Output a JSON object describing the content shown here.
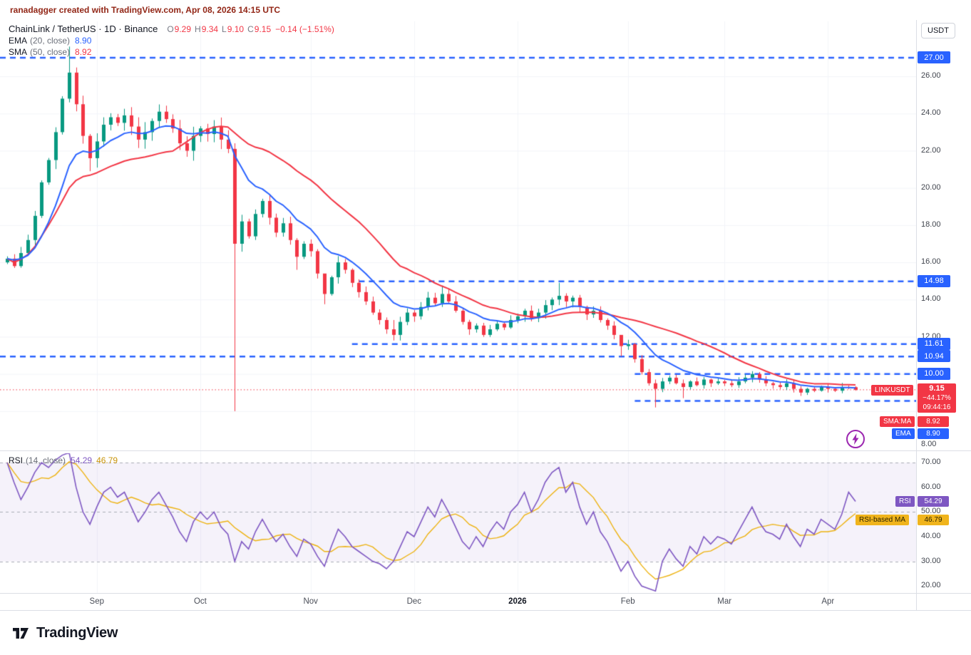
{
  "attribution": "ranadagger created with TradingView.com, Apr 08, 2026 14:15 UTC",
  "legend": {
    "title": "ChainLink / TetherUS · 1D · Binance",
    "ohlc": {
      "o_label": "O",
      "o": "9.29",
      "h_label": "H",
      "h": "9.34",
      "l_label": "L",
      "l": "9.10",
      "c_label": "C",
      "c": "9.15",
      "change": "−0.14 (−1.51%)"
    },
    "ema": {
      "name": "EMA",
      "params": "(20, close)",
      "value": "8.90"
    },
    "sma": {
      "name": "SMA",
      "params": "(50, close)",
      "value": "8.92"
    }
  },
  "rsi_legend": {
    "name": "RSI",
    "params": "(14, close)",
    "value": "54.29",
    "ma_value": "46.79"
  },
  "axis": {
    "currency": "USDT",
    "price_ticks": [
      26,
      24,
      22,
      20,
      18,
      16,
      14,
      12
    ],
    "bottom_tick": "8.00",
    "rsi_ticks": [
      70,
      60,
      50,
      40,
      30,
      20
    ],
    "level_badges": [
      {
        "label": "27.00",
        "value": 27.0
      },
      {
        "label": "14.98",
        "value": 14.98
      },
      {
        "label": "11.61",
        "value": 11.61
      },
      {
        "label": "10.94",
        "value": 10.94
      },
      {
        "label": "10.00",
        "value": 10.0
      }
    ],
    "time_labels": [
      {
        "label": "Sep",
        "i": 13
      },
      {
        "label": "Oct",
        "i": 28
      },
      {
        "label": "Nov",
        "i": 44
      },
      {
        "label": "Dec",
        "i": 59
      },
      {
        "label": "2026",
        "i": 74,
        "bold": true
      },
      {
        "label": "Feb",
        "i": 90
      },
      {
        "label": "Mar",
        "i": 104
      },
      {
        "label": "Apr",
        "i": 119
      }
    ]
  },
  "badges": {
    "price": {
      "value": "9.15",
      "change": "−44.17%",
      "countdown": "09:44:16"
    },
    "symbol_tag": "LINKUSDT",
    "sma_tag": {
      "label": "SMA:MA",
      "value": "8.92"
    },
    "ema_tag": {
      "label": "EMA",
      "value": "8.90"
    },
    "rsi_tag": {
      "label": "RSI",
      "value": "54.29"
    },
    "rsi_ma_tag": {
      "label": "RSI-based MA",
      "value": "46.79"
    }
  },
  "footer": {
    "brand": "TradingView"
  },
  "colors": {
    "up": "#089981",
    "down": "#f23645",
    "ema": "#2962ff",
    "sma": "#f23645",
    "level": "#2962ff",
    "last_price_line": "#f23645",
    "rsi": "#7e57c2",
    "rsi_ma": "#edb20f",
    "rsi_band": "rgba(126,87,194,0.08)"
  },
  "chart_data": [
    {
      "type": "candlestick",
      "title": "ChainLink / TetherUS, 1D, Binance",
      "ticker": "LINKUSDT",
      "interval": "1D",
      "exchange": "Binance",
      "last_ohlc": {
        "open": 9.29,
        "high": 9.34,
        "low": 9.1,
        "close": 9.15,
        "change": -0.14,
        "change_pct": -1.51
      },
      "ylim": [
        5.9,
        29.0
      ],
      "x_start": "Aug 2025",
      "x_end": "Apr 8 2026",
      "sampling_days": 2,
      "first_open": 16.0,
      "closes": [
        16.2,
        15.8,
        16.5,
        17.2,
        18.5,
        20.3,
        21.5,
        23.0,
        24.8,
        26.2,
        24.5,
        22.8,
        21.6,
        22.5,
        23.4,
        23.8,
        23.5,
        23.9,
        23.3,
        22.6,
        23.0,
        23.6,
        24.1,
        23.7,
        23.2,
        22.4,
        22.0,
        22.8,
        23.2,
        22.9,
        23.3,
        22.6,
        22.1,
        17.0,
        18.2,
        17.4,
        18.6,
        19.3,
        18.4,
        17.6,
        18.1,
        17.2,
        16.3,
        17.0,
        16.6,
        15.4,
        14.3,
        15.2,
        16.0,
        15.6,
        14.9,
        14.4,
        13.9,
        13.3,
        12.9,
        12.4,
        12.1,
        12.8,
        13.3,
        13.1,
        13.6,
        14.1,
        13.8,
        14.3,
        13.9,
        13.4,
        12.8,
        12.4,
        12.6,
        12.1,
        12.4,
        12.7,
        12.5,
        12.9,
        13.1,
        13.4,
        13.0,
        13.3,
        13.7,
        14.0,
        14.2,
        13.9,
        14.1,
        13.6,
        13.2,
        13.4,
        12.9,
        12.6,
        12.1,
        11.5,
        11.6,
        10.8,
        10.1,
        9.5,
        9.2,
        9.6,
        9.8,
        9.5,
        9.3,
        9.6,
        9.4,
        9.7,
        9.5,
        9.6,
        9.5,
        9.4,
        9.6,
        9.8,
        10.0,
        9.7,
        9.5,
        9.4,
        9.3,
        9.5,
        9.2,
        9.0,
        9.2,
        9.1,
        9.3,
        9.2,
        9.1,
        9.3,
        9.29,
        9.15
      ],
      "wick_overrides": {
        "9": [
          27.6,
          24.6
        ],
        "12": [
          22.9,
          20.9
        ],
        "33": [
          22.4,
          8.0
        ],
        "42": [
          17.3,
          15.6
        ],
        "46": [
          15.3,
          13.75
        ],
        "56": [
          12.9,
          11.8
        ],
        "63": [
          14.75,
          13.6
        ],
        "80": [
          14.9,
          13.7
        ],
        "89": [
          12.0,
          10.95
        ],
        "94": [
          9.7,
          8.2
        ],
        "98": [
          9.7,
          8.7
        ],
        "108": [
          10.15,
          9.55
        ],
        "115": [
          9.35,
          8.82
        ],
        "123": [
          9.34,
          9.1
        ]
      },
      "levels": [
        {
          "value": 27.0,
          "from": 0
        },
        {
          "value": 14.98,
          "from": 51
        },
        {
          "value": 11.61,
          "from": 50
        },
        {
          "value": 10.94,
          "from": 0
        },
        {
          "value": 10.0,
          "from": 91
        },
        {
          "value": 8.55,
          "from": 91
        }
      ],
      "last_price": 9.15,
      "indicators": [
        {
          "name": "EMA",
          "period": 20,
          "value": 8.9
        },
        {
          "name": "SMA",
          "period": 50,
          "value": 8.92
        }
      ],
      "ema_window_samples": 10,
      "sma_window_samples": 25
    },
    {
      "type": "line",
      "name": "RSI",
      "period": 14,
      "value": 54.29,
      "ma_value": 46.79,
      "ylim": [
        17,
        74
      ],
      "bands": [
        70,
        50,
        30
      ],
      "ma_window_samples": 6,
      "values": [
        70,
        62,
        55,
        60,
        66,
        70,
        68,
        71,
        73,
        74,
        60,
        50,
        45,
        52,
        58,
        60,
        56,
        58,
        52,
        46,
        50,
        55,
        58,
        53,
        48,
        42,
        38,
        46,
        50,
        47,
        50,
        44,
        41,
        30,
        38,
        35,
        42,
        47,
        42,
        38,
        41,
        36,
        32,
        39,
        37,
        32,
        28,
        36,
        43,
        40,
        36,
        34,
        32,
        30,
        29,
        27,
        30,
        36,
        42,
        40,
        46,
        52,
        48,
        55,
        50,
        44,
        38,
        35,
        40,
        36,
        42,
        46,
        43,
        50,
        53,
        58,
        50,
        55,
        62,
        66,
        68,
        58,
        62,
        52,
        45,
        50,
        42,
        38,
        32,
        26,
        30,
        24,
        20,
        19,
        18,
        30,
        35,
        31,
        28,
        36,
        33,
        40,
        37,
        40,
        39,
        37,
        42,
        47,
        52,
        46,
        42,
        41,
        39,
        45,
        40,
        36,
        43,
        41,
        47,
        45,
        43,
        49,
        58,
        54.29
      ]
    }
  ]
}
